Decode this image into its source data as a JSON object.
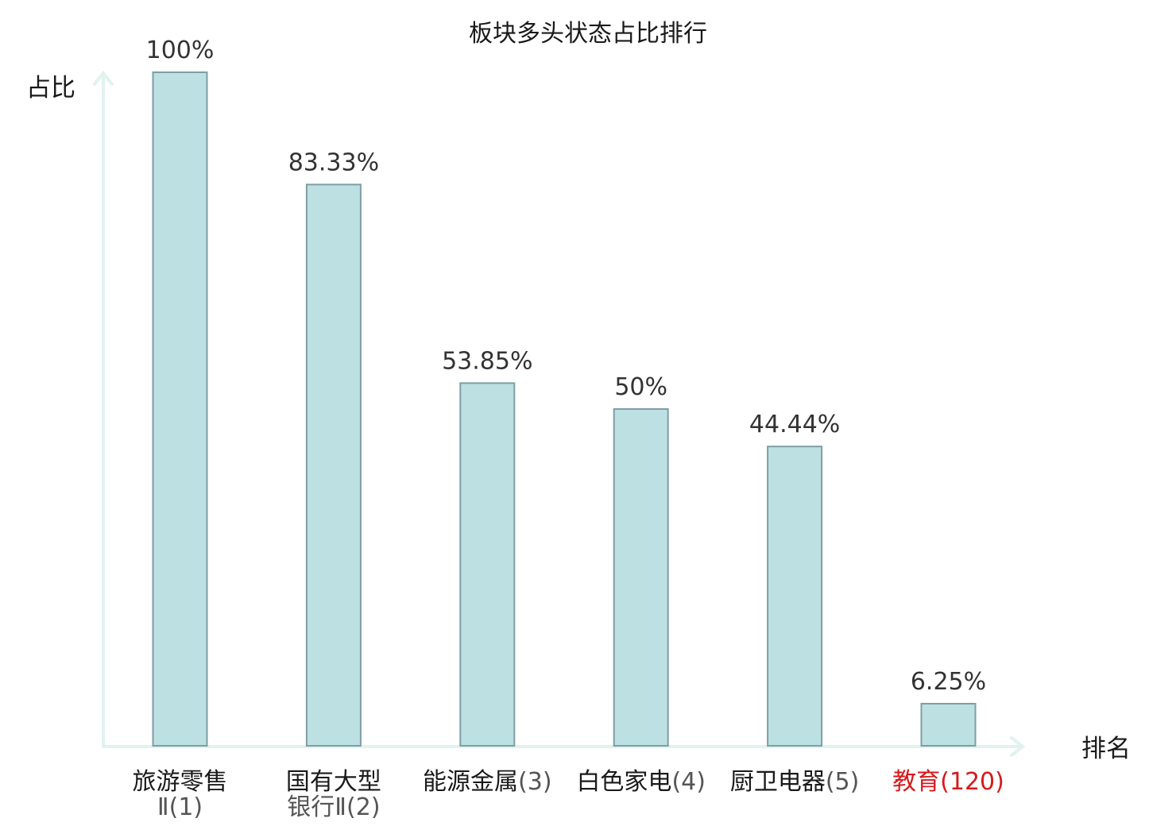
{
  "chart_data": {
    "type": "bar",
    "title": "板块多头状态占比排行",
    "ylabel": "占比",
    "xlabel": "排名",
    "ylim": [
      0,
      100
    ],
    "categories": [
      {
        "name_lines": [
          "旅游零售"
        ],
        "rank_lines": [
          "Ⅱ(1)"
        ],
        "highlight": false
      },
      {
        "name_lines": [
          "国有大型"
        ],
        "rank_lines": [
          "银行Ⅱ(2)"
        ],
        "highlight": false
      },
      {
        "name_lines": [
          "能源金属"
        ],
        "rank_lines": [
          "(3)"
        ],
        "highlight": false
      },
      {
        "name_lines": [
          "白色家电"
        ],
        "rank_lines": [
          "(4)"
        ],
        "highlight": false
      },
      {
        "name_lines": [
          "厨卫电器"
        ],
        "rank_lines": [
          "(5)"
        ],
        "highlight": false
      },
      {
        "name_lines": [
          "教育"
        ],
        "rank_lines": [
          "(120)"
        ],
        "highlight": true
      }
    ],
    "values": [
      100,
      83.33,
      53.85,
      50,
      44.44,
      6.25
    ],
    "value_labels": [
      "100%",
      "83.33%",
      "53.85%",
      "50%",
      "44.44%",
      "6.25%"
    ],
    "colors": {
      "bar_fill": "#bde0e3",
      "bar_stroke": "#7e9fa3",
      "axis": "#e1f2ef",
      "highlight": "#d7191c"
    },
    "grid": false,
    "legend": "none"
  }
}
